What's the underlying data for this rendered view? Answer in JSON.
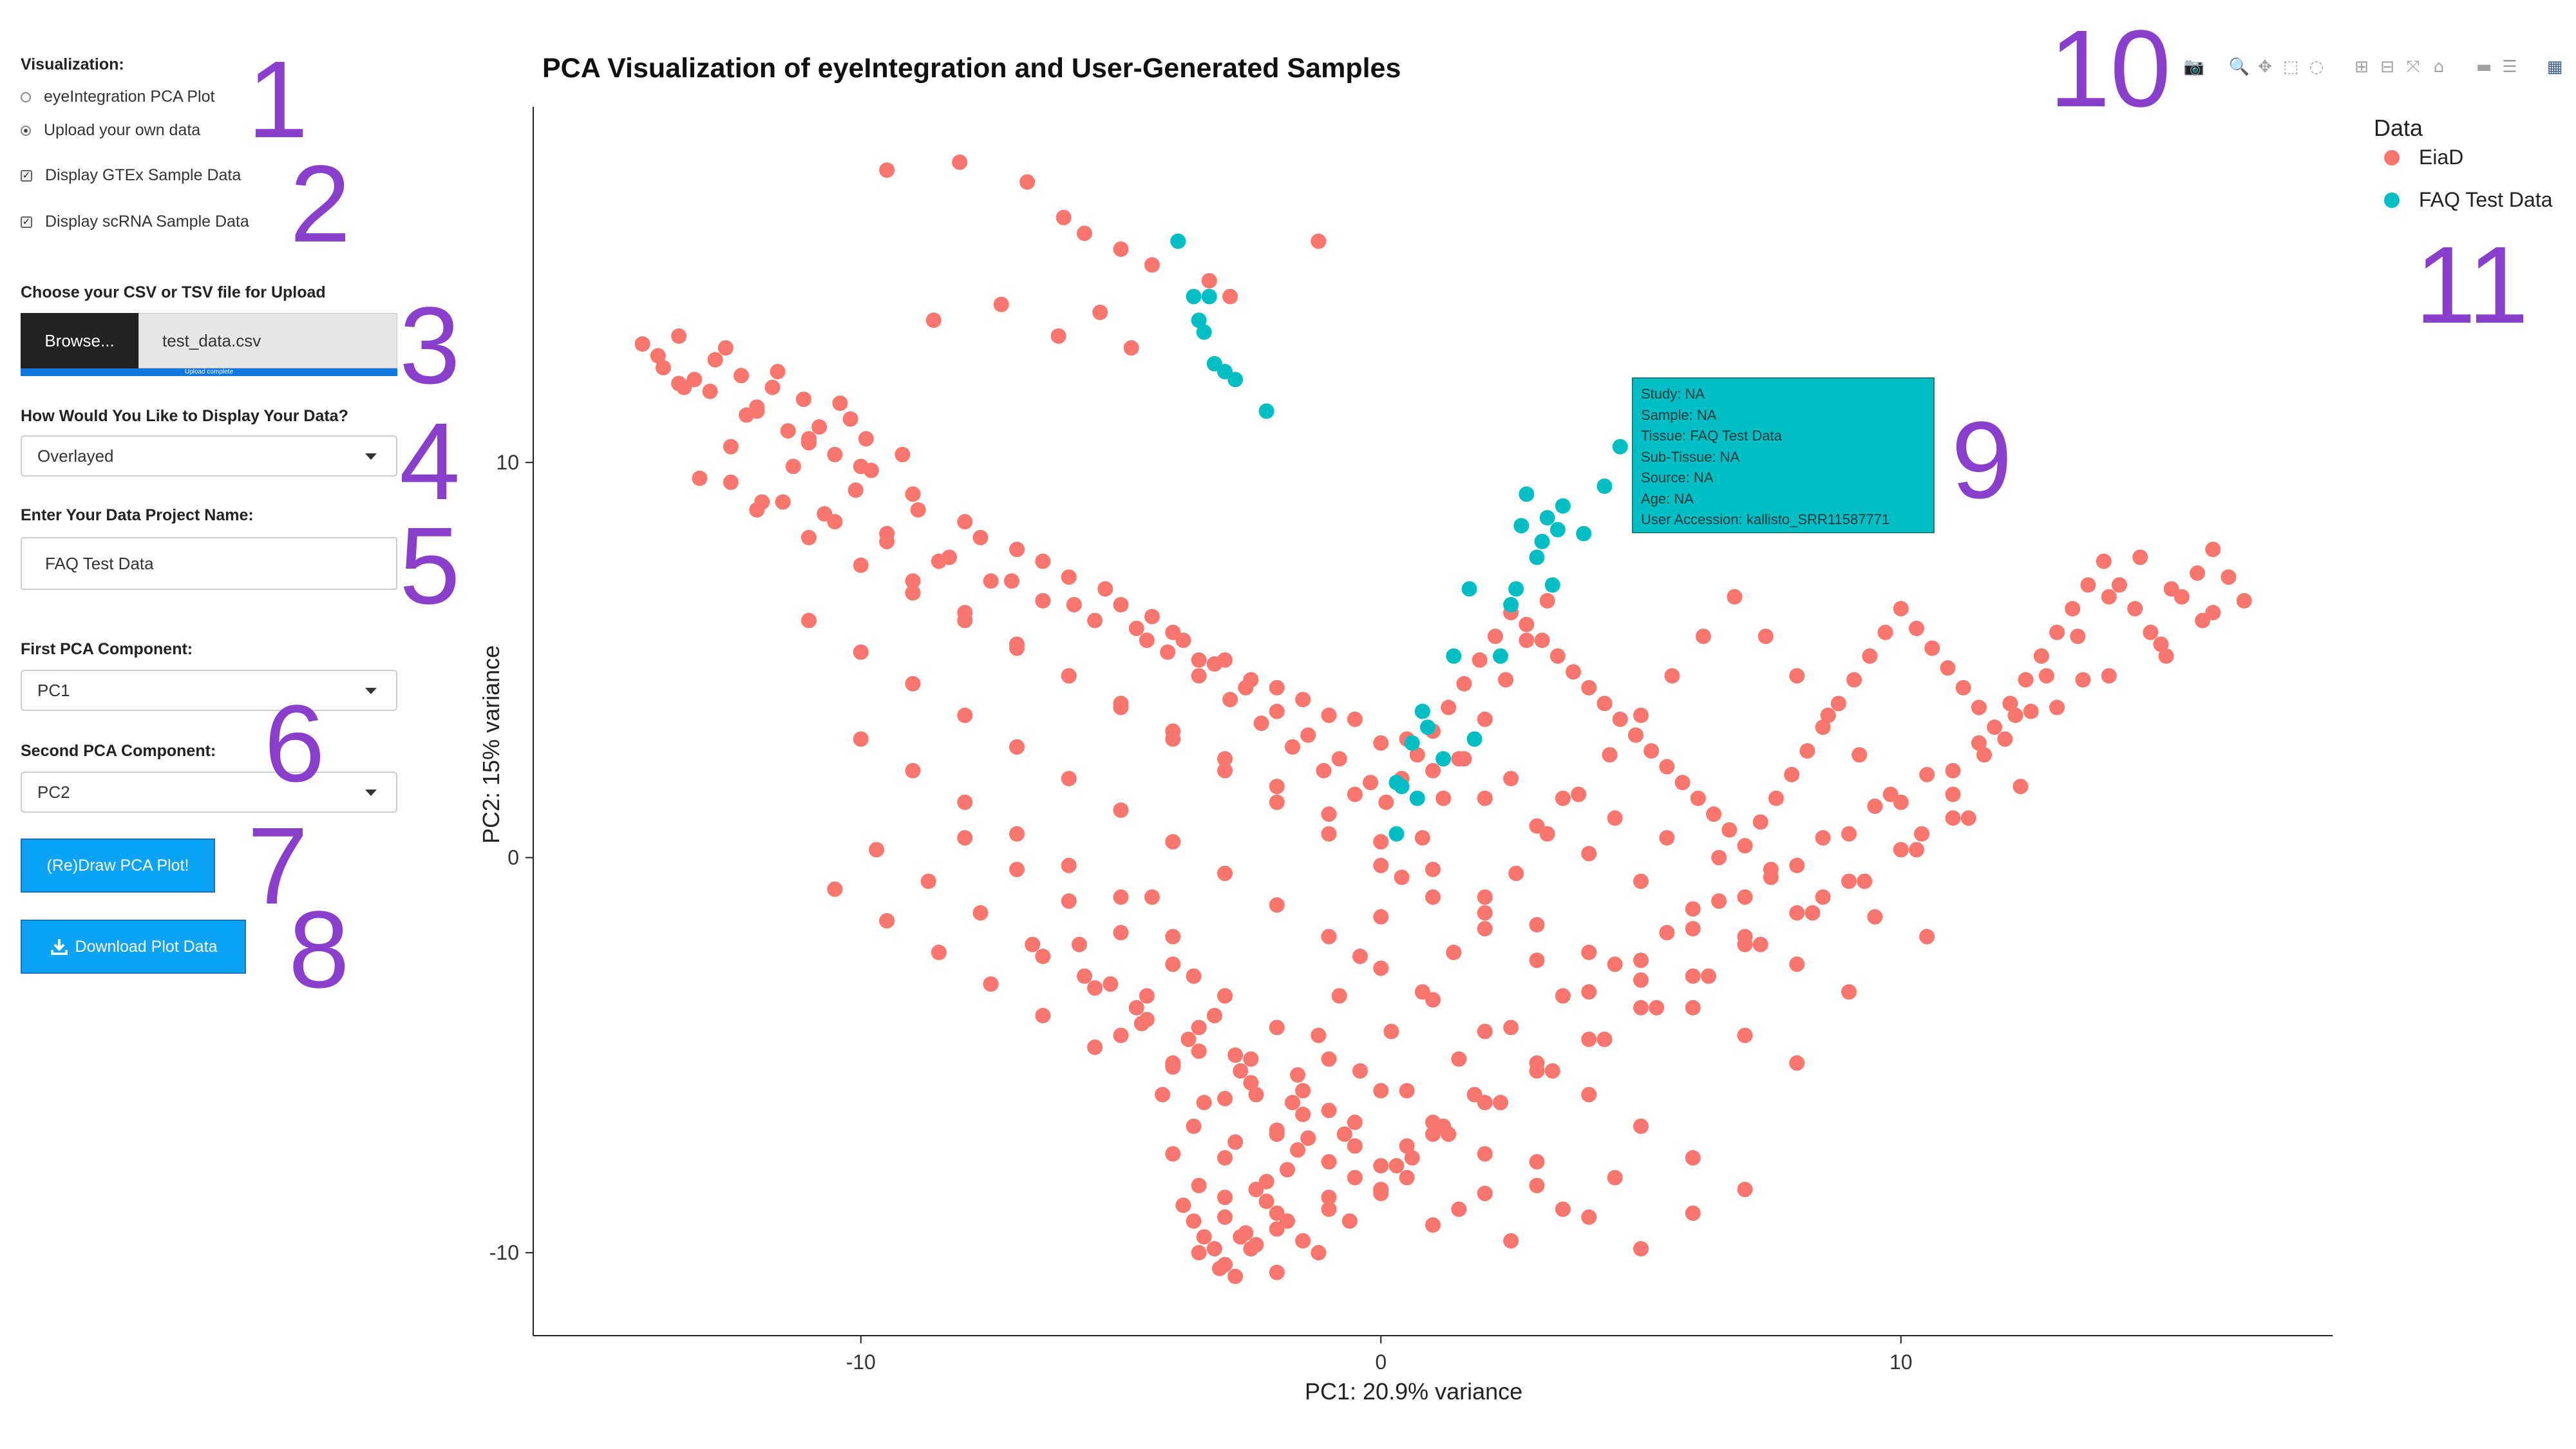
{
  "sidebar": {
    "visualization_label": "Visualization:",
    "radio_options": [
      "eyeIntegration PCA Plot",
      "Upload your own data"
    ],
    "selected_radio": 1,
    "checkboxes": [
      {
        "label": "Display GTEx Sample Data",
        "checked": true
      },
      {
        "label": "Display scRNA Sample Data",
        "checked": true
      }
    ],
    "upload_label": "Choose your CSV or TSV file for Upload",
    "browse_label": "Browse...",
    "file_name": "test_data.csv",
    "progress_text": "Upload complete",
    "upload_progress": 1.0,
    "display_label": "How Would You Like to Display Your Data?",
    "display_value": "Overlayed",
    "project_label": "Enter Your Data Project Name:",
    "project_value": "FAQ Test Data",
    "first_pc_label": "First PCA Component:",
    "first_pc_value": "PC1",
    "second_pc_label": "Second PCA Component:",
    "second_pc_value": "PC2",
    "draw_button": "(Re)Draw PCA Plot!",
    "download_button": "Download Plot Data"
  },
  "annotations": [
    "1",
    "2",
    "3",
    "4",
    "5",
    "6",
    "7",
    "8",
    "9",
    "10",
    "11"
  ],
  "modebar": {
    "icons": [
      "camera-icon",
      "zoom-icon",
      "pan-icon",
      "box-select-icon",
      "lasso-icon",
      "zoom-in-icon",
      "zoom-out-icon",
      "autoscale-icon",
      "reset-axes-icon",
      "spike-lines-icon",
      "compare-hover-icon",
      "plotly-logo-icon"
    ]
  },
  "tooltip": {
    "lines": [
      "Study:  NA",
      "Sample:  NA",
      "Tissue:  FAQ Test Data",
      "Sub-Tissue:  NA",
      "Source:  NA",
      "Age:  NA",
      "User Accession:  kallisto_SRR11587771"
    ]
  },
  "chart_data": {
    "type": "scatter",
    "title": "PCA Visualization of eyeIntegration and User-Generated Samples",
    "xlabel": "PC1: 20.9% variance",
    "ylabel": "PC2: 15% variance",
    "xlim": [
      -16.3,
      18.3
    ],
    "ylim": [
      -12.1,
      19.0
    ],
    "xticks": [
      -10,
      0,
      10
    ],
    "yticks": [
      -10,
      0,
      10
    ],
    "xtick_labels": [
      "-10",
      "0",
      "10"
    ],
    "ytick_labels": [
      "-10",
      "0",
      "10"
    ],
    "legend_title": "Data",
    "legend_position": "right",
    "grid": false,
    "series": [
      {
        "name": "EiaD",
        "color": "#f8766d",
        "x": [
          -14.2,
          -13.8,
          -13.5,
          -13.2,
          -12.9,
          -12.6,
          -12.3,
          -12.0,
          -11.7,
          -11.4,
          -11.1,
          -10.8,
          -10.5,
          -10.2,
          -9.9,
          -13.9,
          -13.4,
          -12.8,
          -12.2,
          -11.6,
          -11.0,
          -10.4,
          -9.8,
          -9.2,
          -13.1,
          -12.5,
          -11.9,
          -11.3,
          -10.7,
          -10.1,
          -9.5,
          -8.9,
          -8.3,
          -7.7,
          -7.1,
          -6.5,
          -5.9,
          -5.3,
          -4.7,
          -4.4,
          -4.1,
          -3.8,
          -3.5,
          -3.2,
          -2.9,
          -2.6,
          -2.3,
          -2.0,
          -1.7,
          -1.4,
          -1.1,
          -0.8,
          -0.5,
          -0.2,
          0.1,
          0.4,
          0.7,
          1.0,
          1.3,
          1.6,
          1.9,
          2.2,
          2.5,
          2.8,
          3.1,
          3.4,
          3.7,
          4.0,
          4.3,
          4.6,
          4.9,
          5.2,
          5.5,
          5.8,
          6.1,
          6.4,
          6.7,
          7.0,
          7.3,
          7.6,
          7.9,
          8.2,
          8.5,
          8.8,
          9.1,
          9.4,
          9.7,
          10.0,
          10.3,
          10.6,
          10.9,
          11.2,
          11.5,
          11.8,
          12.1,
          12.4,
          12.7,
          13.0,
          13.3,
          13.6,
          13.9,
          14.2,
          14.5,
          14.8,
          15.1,
          15.4,
          15.7,
          16.0,
          16.3,
          16.6,
          -4.4,
          -4.0,
          -3.6,
          -3.2,
          -2.8,
          -2.4,
          -2.0,
          -1.6,
          -1.2,
          -0.8,
          -0.4,
          0.0,
          0.4,
          0.8,
          1.2,
          1.6,
          2.0,
          2.4,
          2.8,
          3.2,
          -5.8,
          -5.2,
          -4.6,
          -4.0,
          -3.4,
          -2.8,
          -2.2,
          -1.6,
          -1.0,
          -0.4,
          0.2,
          0.8,
          1.4,
          2.0,
          2.6,
          3.2,
          3.8,
          4.4,
          5.0,
          5.6,
          6.2,
          6.8,
          7.4,
          8.0,
          8.6,
          9.2,
          9.8,
          10.4,
          11.0,
          11.6,
          12.2,
          12.8,
          13.4,
          14.0,
          14.6,
          15.2,
          15.8,
          -9.5,
          -8.1,
          -6.8,
          -6.1,
          -5.7,
          -5.0,
          -4.4,
          -3.3,
          -1.2,
          -2.9,
          -8.6,
          -7.3,
          -6.2,
          -5.4,
          -4.8,
          -9.0,
          -8.0,
          -7.0,
          -6.0,
          -5.0,
          -4.0,
          -3.0,
          -2.0,
          -1.0,
          0.0,
          1.0,
          2.0,
          3.0,
          4.0,
          5.0,
          6.0,
          7.0,
          8.0,
          9.0,
          10.0,
          11.0,
          12.0,
          13.0,
          14.0,
          15.0,
          16.0,
          -10.0,
          -9.0,
          -8.0,
          -7.0,
          -6.0,
          -5.0,
          -4.5,
          -3.5,
          -2.5,
          -1.5,
          -0.5,
          0.5,
          1.5,
          2.5,
          3.5,
          4.5,
          5.5,
          6.5,
          7.5,
          8.5,
          9.5,
          10.5,
          11.5,
          12.5,
          13.5,
          -9.7,
          -8.7,
          -7.7,
          -6.7,
          -5.7,
          -4.7,
          -3.7,
          -2.7,
          -1.7,
          -0.7,
          0.3,
          1.3,
          2.3,
          3.3,
          4.3,
          5.3,
          6.3,
          7.3,
          8.3,
          9.3,
          10.3,
          11.3,
          12.3,
          -10.5,
          -9.5,
          -8.5,
          -7.5,
          -6.5,
          -5.5,
          -3.0,
          -2.0,
          -1.0,
          0.0,
          1.0,
          2.0,
          3.0,
          4.0,
          5.0,
          6.0,
          7.0,
          8.0,
          9.0,
          10.0,
          11.0,
          -12.5,
          -11.5,
          -10.5,
          -9.5,
          -8.5,
          -7.5,
          -6.5,
          -5.5,
          -4.5,
          -3.5,
          -2.5,
          -1.5,
          -0.5,
          0.5,
          1.5,
          2.5,
          3.5,
          4.5,
          5.5,
          6.5,
          7.5,
          8.5,
          9.5,
          10.5,
          -13.5,
          -12.0,
          -11.0,
          -10.0,
          -9.0,
          -8.0,
          -7.0,
          -6.0,
          -5.0,
          -4.0,
          -3.0,
          -2.0,
          -1.0,
          0.0,
          1.0,
          2.0,
          3.0,
          4.0,
          5.0,
          6.0,
          7.0,
          8.0,
          9.0,
          -12.0,
          -11.0,
          -10.0,
          -9.0,
          -8.0,
          -7.0,
          -6.0,
          -5.0,
          -4.0,
          -3.0,
          -2.0,
          -1.0,
          0.0,
          1.0,
          2.0,
          3.0,
          4.0,
          5.0,
          6.0,
          7.0,
          8.0,
          -11.0,
          -10.0,
          -9.0,
          -8.0,
          -7.0,
          -6.0,
          -5.0,
          -4.0,
          -3.0,
          -2.0,
          -1.0,
          0.0,
          1.0,
          2.0,
          3.0,
          4.0,
          5.0,
          6.0,
          7.0,
          -8.0,
          -7.0,
          -6.0,
          -5.0,
          -4.0,
          -3.0,
          -2.0,
          -1.0,
          0.0,
          1.0,
          2.0,
          3.0,
          4.0,
          5.0,
          6.0,
          -6.5,
          -5.5,
          -4.5,
          -3.5,
          -2.5,
          -1.5,
          -0.5,
          0.5,
          1.5,
          2.5,
          3.5,
          4.5,
          -5.0,
          -4.0,
          -3.0,
          -2.0,
          -1.0,
          0.0,
          1.0,
          2.0,
          3.0,
          -4.2,
          -3.6,
          -3.0,
          -2.4,
          -1.8,
          -1.2,
          -0.6,
          0.0,
          0.6,
          1.2,
          1.8,
          -4.0,
          -3.5,
          -3.0,
          -2.5,
          -2.0,
          -1.5,
          -1.0,
          -0.5,
          0.5,
          -3.8,
          -3.4,
          -3.0,
          -2.6,
          -2.2,
          -1.8,
          -1.4,
          -3.6,
          -3.2,
          -2.8,
          -2.4,
          -2.0,
          -3.5,
          -3.1,
          -2.7
        ],
        "y": [
          13.0,
          12.4,
          13.2,
          12.1,
          11.8,
          12.9,
          12.2,
          11.4,
          11.9,
          10.8,
          11.6,
          10.9,
          10.2,
          11.1,
          10.6,
          12.7,
          11.9,
          12.6,
          11.2,
          12.3,
          10.5,
          11.5,
          9.8,
          10.2,
          9.6,
          10.4,
          9.0,
          9.9,
          8.7,
          9.3,
          8.2,
          8.8,
          7.6,
          8.1,
          7.0,
          7.5,
          6.4,
          6.8,
          5.8,
          6.1,
          5.2,
          5.5,
          4.6,
          4.9,
          4.0,
          4.3,
          3.4,
          3.7,
          2.8,
          3.1,
          2.2,
          2.5,
          1.6,
          1.9,
          1.4,
          2.0,
          2.6,
          3.2,
          3.8,
          4.4,
          5.0,
          5.6,
          6.2,
          5.9,
          5.5,
          5.1,
          4.7,
          4.3,
          3.9,
          3.5,
          3.1,
          2.7,
          2.3,
          1.9,
          1.5,
          1.1,
          0.7,
          0.3,
          0.9,
          1.5,
          2.1,
          2.7,
          3.3,
          3.9,
          4.5,
          5.1,
          5.7,
          6.3,
          5.8,
          5.3,
          4.8,
          4.3,
          3.8,
          3.3,
          3.9,
          4.5,
          5.1,
          5.7,
          6.3,
          6.9,
          7.5,
          6.9,
          6.3,
          5.7,
          5.1,
          6.6,
          7.2,
          7.8,
          7.1,
          6.5,
          -1.0,
          -2.0,
          -3.0,
          -4.0,
          -5.0,
          -6.0,
          -7.0,
          -5.5,
          -4.5,
          -3.5,
          -2.5,
          -1.5,
          -0.5,
          0.5,
          1.5,
          2.5,
          3.5,
          4.5,
          5.5,
          6.5,
          -2.2,
          -3.2,
          -4.2,
          -5.2,
          -6.2,
          -7.2,
          -8.2,
          -7.4,
          -6.4,
          -5.4,
          -4.4,
          -3.4,
          -2.4,
          -1.4,
          -0.4,
          0.6,
          1.6,
          2.6,
          3.6,
          4.6,
          5.6,
          6.6,
          5.6,
          4.6,
          3.6,
          2.6,
          1.6,
          0.6,
          1.6,
          2.6,
          3.6,
          4.6,
          5.6,
          6.6,
          7.6,
          6.8,
          6.0,
          17.4,
          17.6,
          17.1,
          16.2,
          15.8,
          15.4,
          15.0,
          14.6,
          15.6,
          14.2,
          13.6,
          14.0,
          13.2,
          13.8,
          12.9,
          7.0,
          6.2,
          5.4,
          4.6,
          3.8,
          3.0,
          2.2,
          1.4,
          0.6,
          -0.2,
          -1.0,
          -1.8,
          -2.6,
          -3.4,
          -2.6,
          -1.8,
          -1.0,
          -0.2,
          0.6,
          1.4,
          2.2,
          3.0,
          3.8,
          4.6,
          5.4,
          6.2,
          3.0,
          2.2,
          1.4,
          0.6,
          -0.2,
          -1.0,
          -3.5,
          -4.3,
          -5.1,
          -5.9,
          -6.7,
          -5.9,
          -5.1,
          -4.3,
          -3.5,
          -2.7,
          -1.9,
          -1.1,
          -0.3,
          0.5,
          1.3,
          2.1,
          2.9,
          3.7,
          4.5,
          0.2,
          -0.6,
          -1.4,
          -2.2,
          -3.0,
          -3.8,
          -4.6,
          -5.4,
          -6.2,
          -7.0,
          -7.8,
          -7.0,
          -6.2,
          -5.4,
          -4.6,
          -3.8,
          -3.0,
          -2.2,
          -1.4,
          -0.6,
          0.2,
          1.0,
          1.8,
          -0.8,
          -1.6,
          -2.4,
          -3.2,
          -4.0,
          -4.8,
          -8.6,
          -9.4,
          -8.6,
          -7.8,
          -7.0,
          -6.2,
          -5.4,
          -4.6,
          -3.8,
          -3.0,
          -2.2,
          -1.4,
          -0.6,
          0.2,
          1.0,
          9.5,
          9.0,
          8.5,
          8.0,
          7.5,
          7.0,
          6.5,
          6.0,
          5.5,
          5.0,
          4.5,
          4.0,
          3.5,
          3.0,
          2.5,
          2.0,
          1.5,
          1.0,
          0.5,
          0.0,
          -0.5,
          -1.0,
          -1.5,
          -2.0,
          12.0,
          11.3,
          10.6,
          9.9,
          9.2,
          8.5,
          7.8,
          7.1,
          6.4,
          5.7,
          5.0,
          4.3,
          3.6,
          2.9,
          2.2,
          1.5,
          0.8,
          0.1,
          -0.6,
          -1.3,
          -2.0,
          -2.7,
          -3.4,
          8.8,
          8.1,
          7.4,
          6.7,
          6.0,
          5.3,
          4.6,
          3.9,
          3.2,
          2.5,
          1.8,
          1.1,
          0.4,
          -0.3,
          -1.0,
          -1.7,
          -2.4,
          -3.1,
          -3.8,
          -4.5,
          -5.2,
          6.0,
          5.2,
          4.4,
          3.6,
          2.8,
          2.0,
          1.2,
          0.4,
          -0.4,
          -1.2,
          -2.0,
          -2.8,
          -3.6,
          -4.4,
          -5.2,
          -6.0,
          -6.8,
          -7.6,
          -8.4,
          0.5,
          -0.3,
          -1.1,
          -1.9,
          -2.7,
          -3.5,
          -4.3,
          -5.1,
          -5.9,
          -6.7,
          -7.5,
          -8.3,
          -9.1,
          -9.9,
          -9.0,
          -2.5,
          -3.3,
          -4.1,
          -4.9,
          -5.7,
          -6.5,
          -7.3,
          -8.1,
          -8.9,
          -9.7,
          -8.9,
          -8.1,
          -4.5,
          -5.3,
          -6.1,
          -6.9,
          -7.7,
          -8.5,
          -9.3,
          -8.5,
          -7.7,
          -6.0,
          -6.8,
          -7.6,
          -8.4,
          -9.2,
          -10.0,
          -9.2,
          -8.4,
          -7.6,
          -6.8,
          -6.0,
          -7.5,
          -8.3,
          -9.1,
          -9.9,
          -10.5,
          -9.7,
          -8.9,
          -8.1,
          -7.3,
          -8.8,
          -9.6,
          -10.3,
          -9.5,
          -8.7,
          -7.9,
          -7.1,
          -9.2,
          -9.9,
          -10.6,
          -9.8,
          -9.0,
          -10.0,
          -10.4,
          -9.6
        ]
      },
      {
        "name": "FAQ Test Data",
        "color": "#00bfc4",
        "x": [
          -3.9,
          -3.6,
          -3.3,
          -3.5,
          -3.4,
          -3.2,
          -3.0,
          -2.8,
          -2.2,
          4.6,
          5.0,
          4.3,
          3.5,
          3.2,
          2.8,
          2.7,
          3.1,
          3.4,
          3.0,
          3.3,
          3.9,
          2.6,
          2.5,
          1.7,
          1.4,
          2.3,
          1.8,
          0.8,
          0.9,
          0.6,
          1.2,
          0.4,
          0.7,
          0.3,
          0.3
        ],
        "y": [
          15.6,
          14.2,
          14.2,
          13.6,
          13.3,
          12.5,
          12.3,
          12.1,
          11.3,
          10.4,
          9.8,
          9.4,
          8.9,
          8.6,
          9.2,
          8.4,
          8.0,
          8.3,
          7.6,
          6.9,
          8.2,
          6.8,
          6.4,
          6.8,
          5.1,
          5.1,
          3.0,
          3.7,
          3.3,
          2.9,
          2.5,
          1.8,
          1.5,
          1.9,
          0.6
        ]
      }
    ]
  }
}
